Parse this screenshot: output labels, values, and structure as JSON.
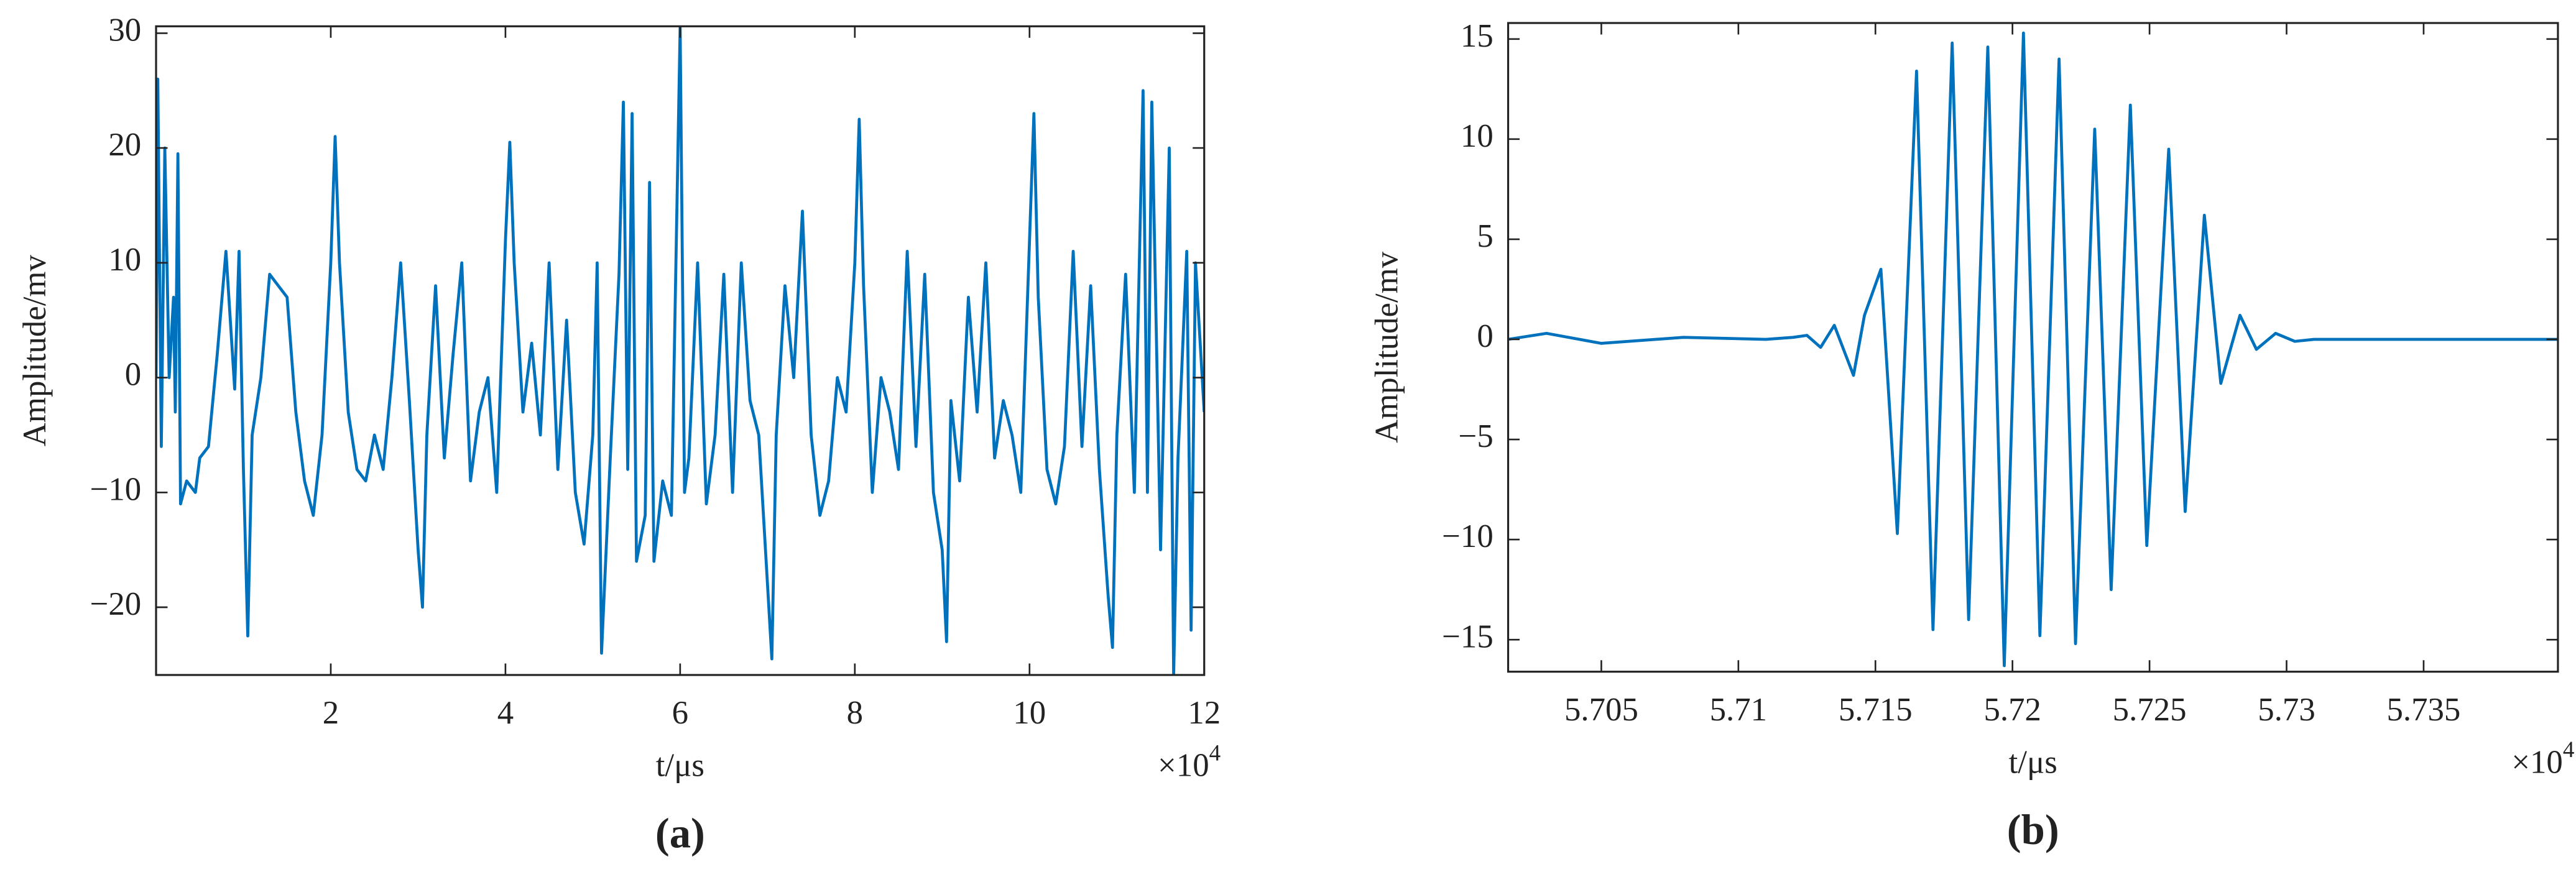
{
  "chart_data": [
    {
      "type": "line",
      "color": "#0072bd",
      "ylabel": "Amplitude/mv",
      "xlabel": "t/μs",
      "x_multiplier": {
        "base": "×10",
        "exponent": "4"
      },
      "caption": "(a)",
      "xlim": [
        0,
        12
      ],
      "ylim": [
        -25.9,
        30.6
      ],
      "xticks": [
        2,
        4,
        6,
        8,
        10,
        12
      ],
      "yticks": [
        {
          "value": -20,
          "label": "−20"
        },
        {
          "value": -10,
          "label": "−10"
        },
        0,
        10,
        20,
        30
      ],
      "x": [
        0,
        0.02,
        0.06,
        0.1,
        0.15,
        0.2,
        0.22,
        0.25,
        0.28,
        0.35,
        0.45,
        0.5,
        0.6,
        0.7,
        0.8,
        0.9,
        0.95,
        1.0,
        1.05,
        1.1,
        1.2,
        1.3,
        1.4,
        1.5,
        1.6,
        1.7,
        1.8,
        1.9,
        2.0,
        2.05,
        2.1,
        2.2,
        2.3,
        2.4,
        2.5,
        2.6,
        2.7,
        2.8,
        2.9,
        3.0,
        3.05,
        3.1,
        3.2,
        3.3,
        3.4,
        3.5,
        3.6,
        3.7,
        3.8,
        3.9,
        4.0,
        4.05,
        4.1,
        4.2,
        4.3,
        4.4,
        4.5,
        4.6,
        4.7,
        4.8,
        4.9,
        5.0,
        5.05,
        5.1,
        5.2,
        5.3,
        5.35,
        5.4,
        5.45,
        5.5,
        5.6,
        5.65,
        5.7,
        5.8,
        5.9,
        6.0,
        6.05,
        6.1,
        6.2,
        6.3,
        6.4,
        6.5,
        6.6,
        6.7,
        6.8,
        6.9,
        7.0,
        7.05,
        7.1,
        7.2,
        7.3,
        7.4,
        7.5,
        7.6,
        7.7,
        7.8,
        7.9,
        8.0,
        8.05,
        8.1,
        8.2,
        8.3,
        8.4,
        8.5,
        8.6,
        8.7,
        8.8,
        8.9,
        9.0,
        9.05,
        9.1,
        9.2,
        9.3,
        9.4,
        9.5,
        9.6,
        9.7,
        9.8,
        9.9,
        10.0,
        10.05,
        10.1,
        10.2,
        10.3,
        10.4,
        10.5,
        10.6,
        10.7,
        10.8,
        10.9,
        10.95,
        11.0,
        11.1,
        11.2,
        11.3,
        11.35,
        11.4,
        11.5,
        11.6,
        11.65,
        11.7,
        11.8,
        11.85,
        11.9,
        12.0
      ],
      "values": [
        0,
        26,
        -6,
        20,
        0,
        7,
        -3,
        19.5,
        -11,
        -9,
        -10,
        -7,
        -6,
        2,
        11,
        -1,
        11,
        -8,
        -22.5,
        -5,
        0,
        9,
        8,
        7,
        -3,
        -9,
        -12,
        -5,
        10,
        21,
        10,
        -3,
        -8,
        -9,
        -5,
        -8,
        0,
        10,
        -2,
        -15,
        -20,
        -5,
        8,
        -7,
        2,
        10,
        -9,
        -3,
        0,
        -10,
        12,
        20.5,
        10,
        -3,
        3,
        -5,
        10,
        -8,
        5,
        -10,
        -14.5,
        -5,
        10,
        -24,
        -7,
        9,
        24,
        -8,
        23,
        -16,
        -12,
        17,
        -16,
        -9,
        -12,
        30.5,
        -10,
        -7,
        10,
        -11,
        -5,
        9,
        -10,
        10,
        -2,
        -5,
        -18,
        -24.5,
        -5,
        8,
        0,
        14.5,
        -5,
        -12,
        -9,
        0,
        -3,
        10,
        22.5,
        8,
        -10,
        0,
        -3,
        -8,
        11,
        -6,
        9,
        -10,
        -15,
        -23,
        -2,
        -9,
        7,
        -3,
        10,
        -7,
        -2,
        -5,
        -10,
        12,
        23,
        7,
        -8,
        -11,
        -6,
        11,
        -6,
        8,
        -8,
        -19,
        -23.5,
        -5,
        9,
        -10,
        25,
        -10,
        24,
        -15,
        20,
        -26,
        -7,
        11,
        -22,
        10,
        -3
      ]
    },
    {
      "type": "line",
      "color": "#0072bd",
      "ylabel": "Amplitude/mv",
      "xlabel": "t/μs",
      "x_multiplier": {
        "base": "×10",
        "exponent": "4"
      },
      "caption": "(b)",
      "xlim": [
        5.7016,
        5.7399
      ],
      "ylim": [
        -16.6,
        15.8
      ],
      "xticks": [
        5.705,
        5.71,
        5.715,
        5.72,
        5.725,
        5.73,
        5.735
      ],
      "yticks": [
        {
          "value": -15,
          "label": "−15"
        },
        {
          "value": -10,
          "label": "−10"
        },
        {
          "value": -5,
          "label": "−5"
        },
        0,
        5,
        10,
        15
      ],
      "x": [
        5.7016,
        5.703,
        5.705,
        5.708,
        5.711,
        5.712,
        5.7125,
        5.713,
        5.7135,
        5.7142,
        5.7146,
        5.7152,
        5.7158,
        5.7165,
        5.7171,
        5.7178,
        5.7184,
        5.7191,
        5.7197,
        5.7204,
        5.721,
        5.7217,
        5.7223,
        5.723,
        5.7236,
        5.7243,
        5.7249,
        5.7257,
        5.7263,
        5.727,
        5.7276,
        5.7283,
        5.7289,
        5.7296,
        5.7303,
        5.731,
        5.735,
        5.7399
      ],
      "values": [
        0,
        0.3,
        -0.2,
        0.1,
        0,
        0.1,
        0.2,
        -0.4,
        0.7,
        -1.8,
        1.2,
        3.5,
        -9.7,
        13.4,
        -14.5,
        14.8,
        -14,
        14.6,
        -16.3,
        15.3,
        -14.8,
        14,
        -15.2,
        10.5,
        -12.5,
        11.7,
        -10.3,
        9.5,
        -8.6,
        6.2,
        -2.2,
        1.2,
        -0.5,
        0.3,
        -0.1,
        0,
        0,
        0
      ]
    }
  ]
}
